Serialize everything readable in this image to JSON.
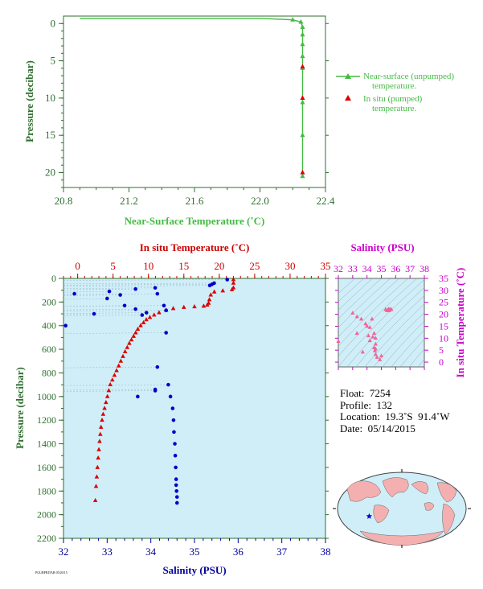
{
  "colors": {
    "near_surface": "#44bb44",
    "in_situ_temp": "#dd0000",
    "salinity": "#0000cc",
    "axis_green": "#2f6f2f",
    "axis_red": "#cc0000",
    "axis_blue": "#000099",
    "salinity_axis": "#cc00cc",
    "panel_bg": "#cfeef8",
    "ts_marker": "#ee6699"
  },
  "chart_data": [
    {
      "id": "near_surface_panel",
      "type": "line",
      "xlabel": "Near-Surface Temperature (˚C)",
      "ylabel": "Pressure (decibar)",
      "xlim": [
        20.8,
        22.4
      ],
      "ylim": [
        22,
        -1
      ],
      "x_ticks": [
        "20.8",
        "21.2",
        "21.6",
        "22.0",
        "22.4"
      ],
      "y_ticks": [
        "0",
        "5",
        "10",
        "15",
        "20"
      ],
      "legend": {
        "placement": "right",
        "entries": [
          {
            "label_line1": "Near-surface (unpumped)",
            "label_line2": "temperature."
          },
          {
            "label_line1": "In situ (pumped)",
            "label_line2": "temperature."
          }
        ]
      },
      "series": [
        {
          "name": "Near-surface (unpumped) temperature.",
          "x": [
            20.9,
            21.2,
            21.6,
            22.0,
            22.2,
            22.25,
            22.26,
            22.26,
            22.26,
            22.26,
            22.26,
            22.26,
            22.26,
            22.26
          ],
          "y": [
            -0.7,
            -0.7,
            -0.7,
            -0.7,
            -0.5,
            -0.2,
            0.5,
            1.5,
            2.8,
            4.4,
            6.0,
            10.6,
            15.0,
            20.5
          ]
        },
        {
          "name": "In situ (pumped) temperature.",
          "x": [
            22.26,
            22.26,
            22.26
          ],
          "y": [
            5.8,
            10.0,
            20.0
          ]
        }
      ]
    },
    {
      "id": "profile_panel",
      "type": "scatter",
      "top_axis_label": "In situ Temperature (˚C)",
      "bottom_axis_label": "Salinity (PSU)",
      "ylabel": "Pressure (decibar)",
      "temp_lim": [
        -2,
        35
      ],
      "sal_lim": [
        32,
        38
      ],
      "ylim": [
        2200,
        0
      ],
      "temp_ticks": [
        "0",
        "5",
        "10",
        "15",
        "20",
        "25",
        "30",
        "35"
      ],
      "sal_ticks": [
        "32",
        "33",
        "34",
        "35",
        "36",
        "37",
        "38"
      ],
      "y_ticks": [
        "0",
        "200",
        "400",
        "600",
        "800",
        "1000",
        "1200",
        "1400",
        "1600",
        "1800",
        "2000",
        "2200"
      ],
      "temperature": {
        "t": [
          22.0,
          22.0,
          22.0,
          21.8,
          20.5,
          19.3,
          18.8,
          18.6,
          18.5,
          18.3,
          17.8,
          16.5,
          15.0,
          13.5,
          12.5,
          11.5,
          10.8,
          10.2,
          9.7,
          9.3,
          8.9,
          8.5,
          8.2,
          7.9,
          7.6,
          7.3,
          7.0,
          6.7,
          6.4,
          6.1,
          5.8,
          5.5,
          5.2,
          4.9,
          4.6,
          4.4,
          4.2,
          4.0,
          3.8,
          3.6,
          3.45,
          3.3,
          3.2,
          3.1,
          3.0,
          2.9,
          2.8,
          2.7,
          2.6,
          2.5
        ],
        "p": [
          10,
          40,
          80,
          95,
          105,
          115,
          140,
          180,
          210,
          225,
          235,
          240,
          245,
          255,
          270,
          290,
          310,
          330,
          350,
          375,
          400,
          430,
          460,
          490,
          520,
          550,
          585,
          620,
          660,
          700,
          740,
          780,
          820,
          860,
          900,
          950,
          1000,
          1050,
          1100,
          1150,
          1200,
          1260,
          1320,
          1380,
          1450,
          1520,
          1600,
          1680,
          1760,
          1880
        ]
      },
      "salinity": {
        "s": [
          35.75,
          35.45,
          35.4,
          35.35,
          34.1,
          33.65,
          33.05,
          32.25,
          34.15,
          33.3,
          33.0,
          33.4,
          34.3,
          33.65,
          34.35,
          33.9,
          32.7,
          33.8,
          32.05,
          34.35,
          34.15,
          34.1,
          34.4,
          34.1,
          33.7,
          34.45,
          34.5,
          34.52,
          34.53,
          34.55,
          34.56,
          34.57,
          34.58,
          34.58,
          34.59,
          34.6,
          34.6
        ],
        "p": [
          10,
          40,
          50,
          60,
          80,
          90,
          110,
          130,
          130,
          140,
          170,
          230,
          230,
          260,
          270,
          290,
          300,
          310,
          400,
          460,
          750,
          950,
          900,
          940,
          1000,
          1000,
          1100,
          1200,
          1300,
          1400,
          1500,
          1600,
          1700,
          1750,
          1800,
          1850,
          1900
        ]
      }
    },
    {
      "id": "ts_inset",
      "type": "scatter",
      "title": "Salinity (PSU)",
      "ylabel": "In situ Temperature (˚C)",
      "xlim": [
        32,
        38
      ],
      "ylim": [
        -2,
        35
      ],
      "x_ticks": [
        "32",
        "33",
        "34",
        "35",
        "36",
        "37",
        "38"
      ],
      "y_ticks": [
        "0",
        "5",
        "10",
        "15",
        "20",
        "25",
        "30",
        "35"
      ],
      "points": {
        "s": [
          34.2,
          34.6,
          34.7,
          34.9,
          34.6,
          35.0,
          34.4,
          34.1,
          33.3,
          33.0,
          33.6,
          34.0,
          34.35,
          34.5,
          34.6,
          34.55,
          35.3,
          35.5,
          35.6,
          35.7,
          35.55,
          35.4,
          32.0,
          33.3,
          34.2,
          34.6,
          33.9,
          34.5,
          33.7
        ],
        "t": [
          9.0,
          5.5,
          2.0,
          1.0,
          3.2,
          2.6,
          10.5,
          11.0,
          12.0,
          20.5,
          18.0,
          15.0,
          18.0,
          12.0,
          7.5,
          4.8,
          22.0,
          22.2,
          22.1,
          22.0,
          21.5,
          21.5,
          8.7,
          19.0,
          14.5,
          10.0,
          16.0,
          6.0,
          4.2
        ]
      }
    },
    {
      "id": "location_map",
      "type": "map",
      "marker": {
        "lat": -19.3,
        "lon": -91.4
      }
    }
  ],
  "info": {
    "float_label": "Float:",
    "float_value": "7254",
    "profile_label": "Profile:",
    "profile_value": "132",
    "location_label": "Location:",
    "location_value": "19.3˚S  91.4˚W",
    "date_label": "Date:",
    "date_value": "05/14/2015"
  },
  "footer_note": "PGURPRITAB 05/20/15"
}
